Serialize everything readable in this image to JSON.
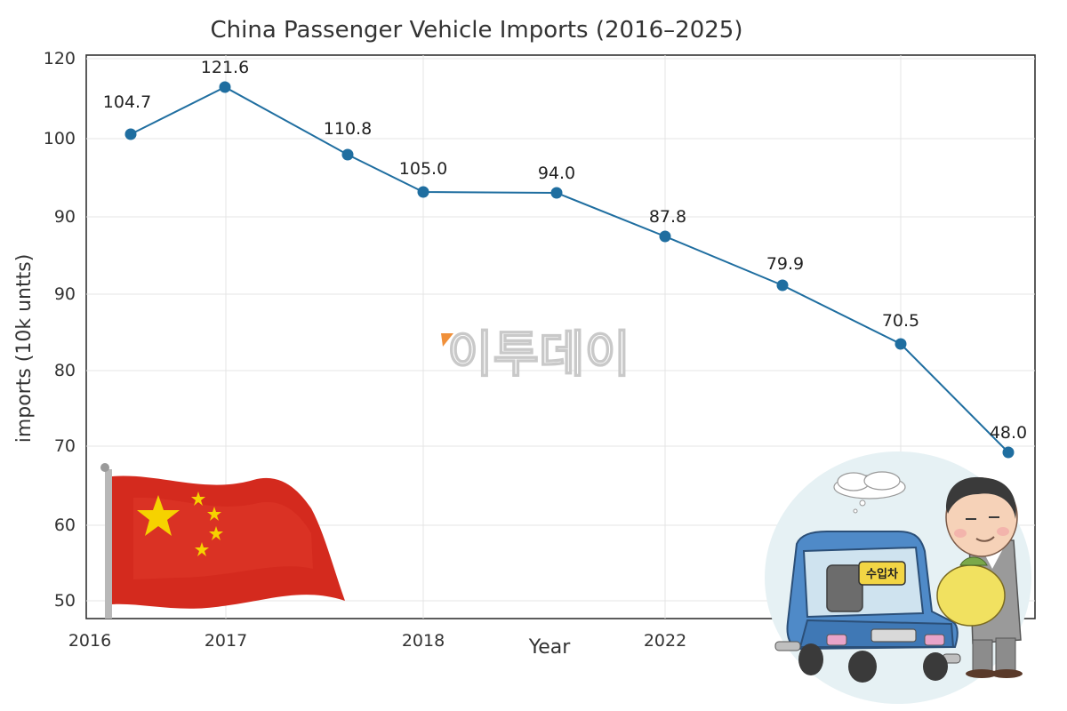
{
  "chart_data": {
    "type": "line",
    "title": "China Passenger Vehicle Imports (2016–2025)",
    "xlabel": "Year",
    "ylabel": "imports (10k untts)",
    "x_tick_labels": [
      "2016",
      "2017",
      "2018",
      "2022"
    ],
    "y_tick_labels": [
      "120",
      "100",
      "90",
      "90",
      "80",
      "70",
      "60",
      "50"
    ],
    "grid": true,
    "series": [
      {
        "color": "#1f6ea0",
        "labels": [
          "104.7",
          "121.6",
          "110.8",
          "105.0",
          "94.0",
          "87.8",
          "79.9",
          "70.5",
          "48.0"
        ]
      }
    ]
  },
  "watermark": {
    "text": "이투데이"
  },
  "illustration": {
    "sign_text": "수입차"
  },
  "colors": {
    "line": "#1f6ea0",
    "flag_red": "#d42a1e",
    "flag_star": "#f6d200",
    "car_blue": "#4f8ac8"
  }
}
